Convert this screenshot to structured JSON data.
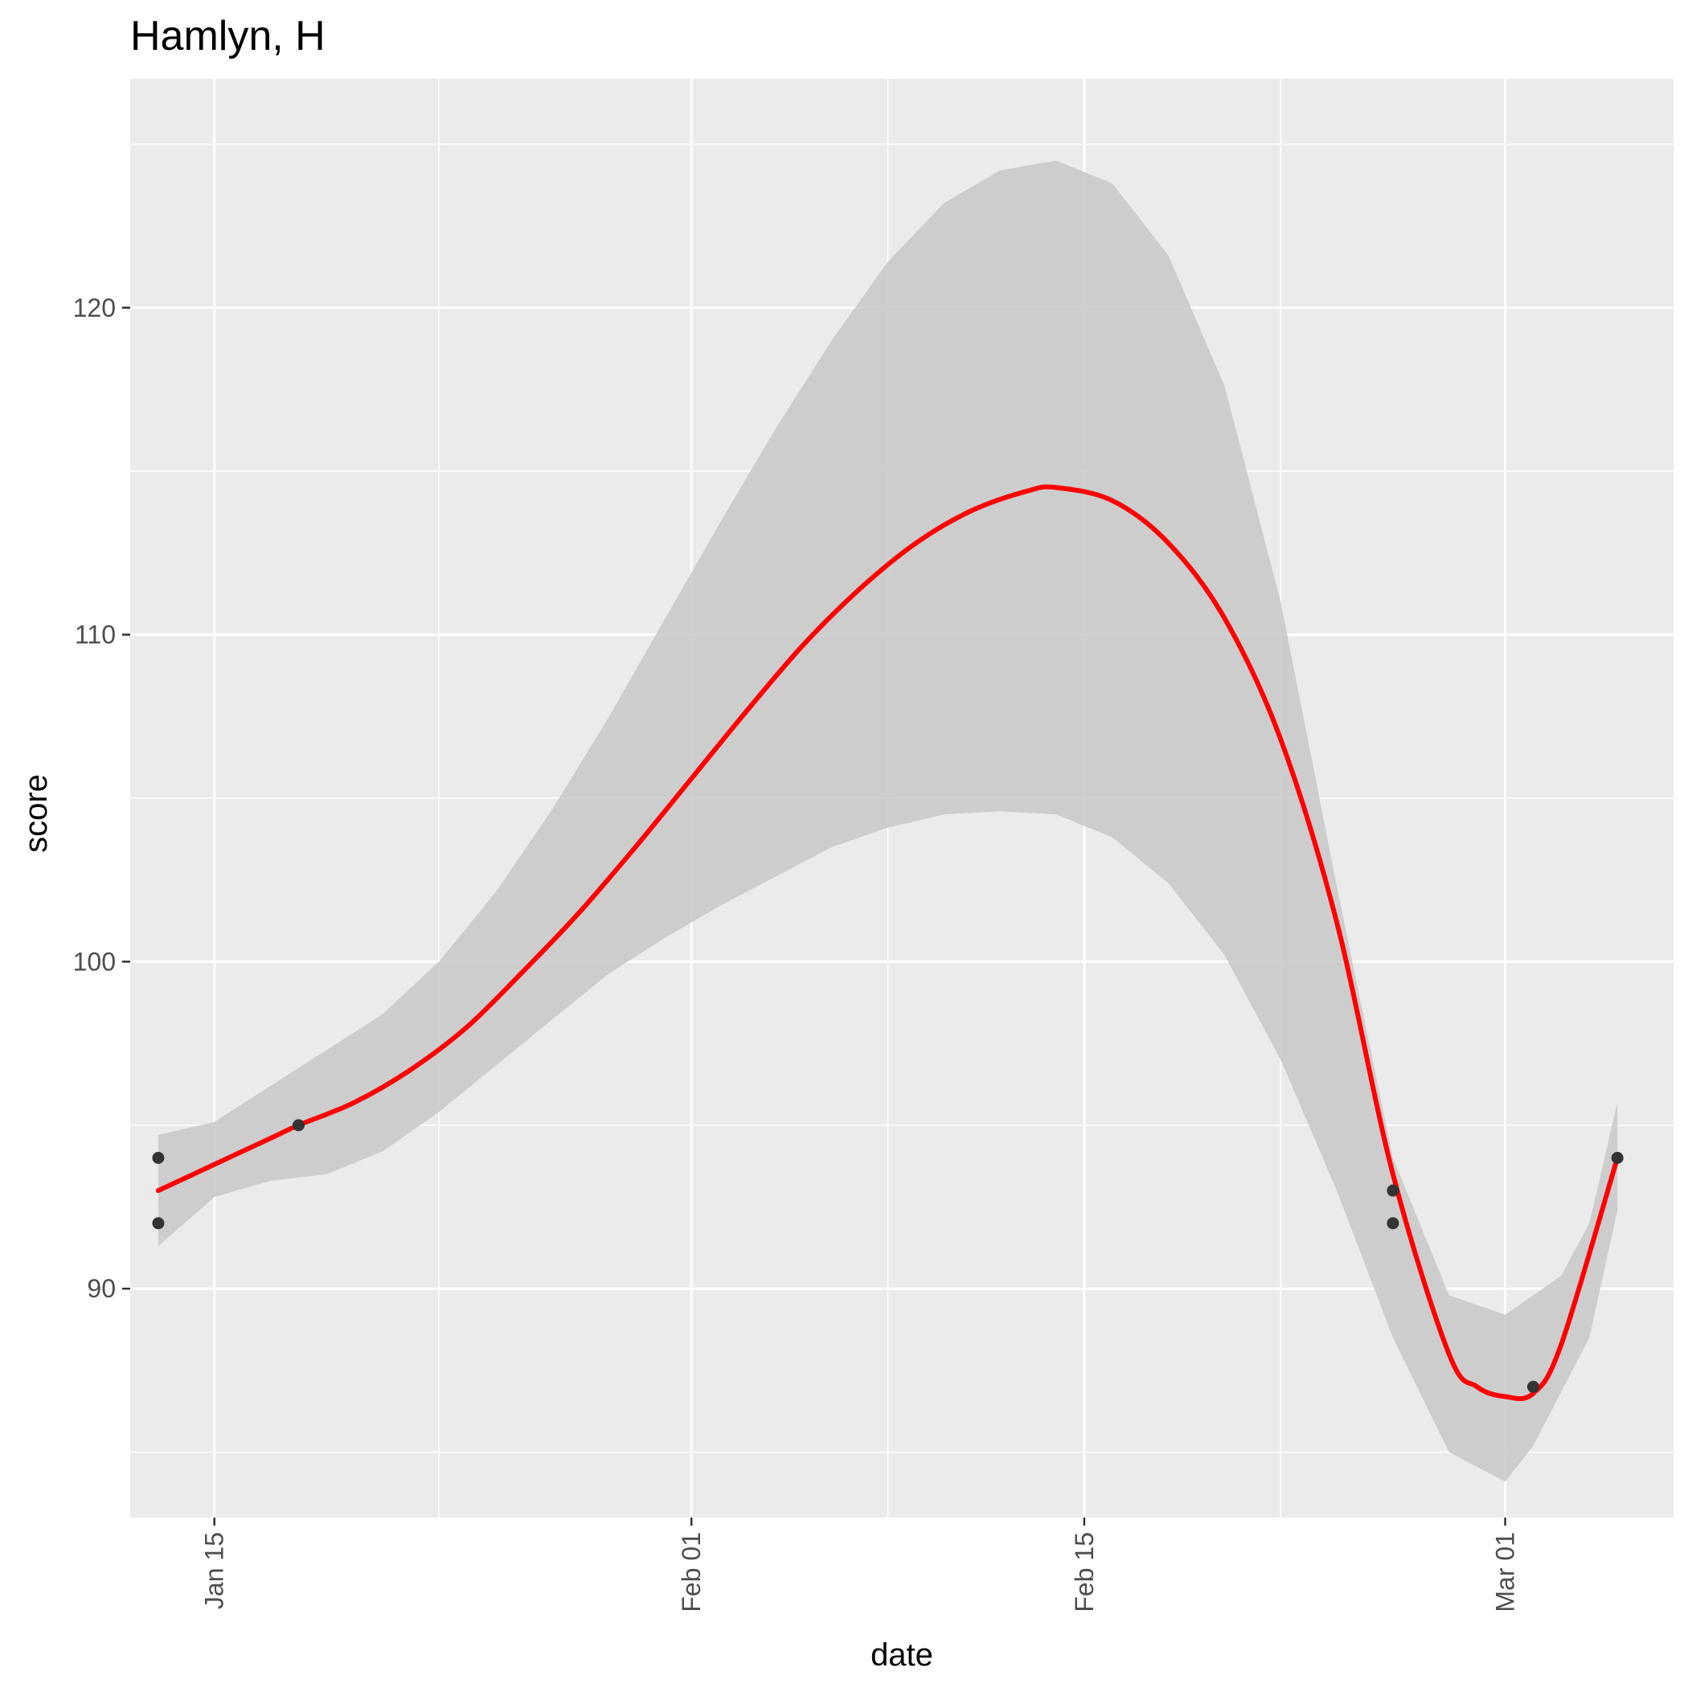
{
  "chart_data": {
    "type": "line",
    "title": "Hamlyn, H",
    "xlabel": "date",
    "ylabel": "score",
    "x_is_date": true,
    "x_range": [
      "2024-01-12",
      "2024-03-07"
    ],
    "ylim": [
      83.0,
      127.0
    ],
    "x_major_ticks": [
      {
        "date": "2024-01-15",
        "label": "Jan 15"
      },
      {
        "date": "2024-02-01",
        "label": "Feb 01"
      },
      {
        "date": "2024-02-15",
        "label": "Feb 15"
      },
      {
        "date": "2024-03-01",
        "label": "Mar 01"
      }
    ],
    "x_minor_gridlines": [
      "2024-01-23",
      "2024-02-08",
      "2024-02-22"
    ],
    "y_major_ticks": [
      90,
      100,
      110,
      120
    ],
    "y_minor_gridlines": [
      85,
      95,
      105,
      115,
      125
    ],
    "grid": true,
    "background": "#ebebeb",
    "series": [
      {
        "role": "points",
        "color": "#333333",
        "points": [
          {
            "x": "2024-01-13",
            "y": 94
          },
          {
            "x": "2024-01-13",
            "y": 92
          },
          {
            "x": "2024-01-18",
            "y": 95
          },
          {
            "x": "2024-02-26",
            "y": 93
          },
          {
            "x": "2024-02-26",
            "y": 92
          },
          {
            "x": "2024-03-02",
            "y": 87
          },
          {
            "x": "2024-03-05",
            "y": 94
          }
        ]
      },
      {
        "role": "smooth",
        "color": "#ff0000",
        "points": [
          {
            "x": "2024-01-13",
            "y": 93.0
          },
          {
            "x": "2024-01-15",
            "y": 93.8
          },
          {
            "x": "2024-01-17",
            "y": 94.6
          },
          {
            "x": "2024-01-18",
            "y": 95.0
          },
          {
            "x": "2024-01-20",
            "y": 95.7
          },
          {
            "x": "2024-01-22",
            "y": 96.7
          },
          {
            "x": "2024-01-24",
            "y": 98.0
          },
          {
            "x": "2024-01-26",
            "y": 99.7
          },
          {
            "x": "2024-01-28",
            "y": 101.5
          },
          {
            "x": "2024-01-30",
            "y": 103.5
          },
          {
            "x": "2024-02-01",
            "y": 105.6
          },
          {
            "x": "2024-02-03",
            "y": 107.7
          },
          {
            "x": "2024-02-05",
            "y": 109.7
          },
          {
            "x": "2024-02-07",
            "y": 111.4
          },
          {
            "x": "2024-02-09",
            "y": 112.8
          },
          {
            "x": "2024-02-11",
            "y": 113.8
          },
          {
            "x": "2024-02-13",
            "y": 114.4
          },
          {
            "x": "2024-02-14",
            "y": 114.5
          },
          {
            "x": "2024-02-16",
            "y": 114.1
          },
          {
            "x": "2024-02-18",
            "y": 112.8
          },
          {
            "x": "2024-02-20",
            "y": 110.5
          },
          {
            "x": "2024-02-22",
            "y": 106.8
          },
          {
            "x": "2024-02-24",
            "y": 101.2
          },
          {
            "x": "2024-02-26",
            "y": 93.5
          },
          {
            "x": "2024-02-28",
            "y": 88.0
          },
          {
            "x": "2024-02-29",
            "y": 87.0
          },
          {
            "x": "2024-03-01",
            "y": 86.7
          },
          {
            "x": "2024-03-02",
            "y": 86.8
          },
          {
            "x": "2024-03-03",
            "y": 88.3
          },
          {
            "x": "2024-03-05",
            "y": 94.0
          }
        ]
      },
      {
        "role": "confidence-band",
        "color": "#c8c8c8",
        "upper": [
          {
            "x": "2024-01-13",
            "y": 94.7
          },
          {
            "x": "2024-01-15",
            "y": 95.1
          },
          {
            "x": "2024-01-17",
            "y": 96.2
          },
          {
            "x": "2024-01-19",
            "y": 97.3
          },
          {
            "x": "2024-01-21",
            "y": 98.4
          },
          {
            "x": "2024-01-23",
            "y": 100.0
          },
          {
            "x": "2024-01-25",
            "y": 102.1
          },
          {
            "x": "2024-01-27",
            "y": 104.6
          },
          {
            "x": "2024-01-29",
            "y": 107.4
          },
          {
            "x": "2024-01-31",
            "y": 110.4
          },
          {
            "x": "2024-02-02",
            "y": 113.4
          },
          {
            "x": "2024-02-04",
            "y": 116.3
          },
          {
            "x": "2024-02-06",
            "y": 119.0
          },
          {
            "x": "2024-02-08",
            "y": 121.4
          },
          {
            "x": "2024-02-10",
            "y": 123.2
          },
          {
            "x": "2024-02-12",
            "y": 124.2
          },
          {
            "x": "2024-02-14",
            "y": 124.5
          },
          {
            "x": "2024-02-16",
            "y": 123.8
          },
          {
            "x": "2024-02-18",
            "y": 121.6
          },
          {
            "x": "2024-02-20",
            "y": 117.6
          },
          {
            "x": "2024-02-22",
            "y": 111.0
          },
          {
            "x": "2024-02-24",
            "y": 102.3
          },
          {
            "x": "2024-02-26",
            "y": 94.0
          },
          {
            "x": "2024-02-28",
            "y": 89.8
          },
          {
            "x": "2024-03-01",
            "y": 89.2
          },
          {
            "x": "2024-03-03",
            "y": 90.4
          },
          {
            "x": "2024-03-04",
            "y": 92.0
          },
          {
            "x": "2024-03-05",
            "y": 95.7
          }
        ],
        "lower": [
          {
            "x": "2024-01-13",
            "y": 91.3
          },
          {
            "x": "2024-01-15",
            "y": 92.8
          },
          {
            "x": "2024-01-17",
            "y": 93.3
          },
          {
            "x": "2024-01-19",
            "y": 93.5
          },
          {
            "x": "2024-01-21",
            "y": 94.2
          },
          {
            "x": "2024-01-23",
            "y": 95.4
          },
          {
            "x": "2024-01-25",
            "y": 96.8
          },
          {
            "x": "2024-01-27",
            "y": 98.2
          },
          {
            "x": "2024-01-29",
            "y": 99.6
          },
          {
            "x": "2024-01-31",
            "y": 100.7
          },
          {
            "x": "2024-02-02",
            "y": 101.7
          },
          {
            "x": "2024-02-04",
            "y": 102.6
          },
          {
            "x": "2024-02-06",
            "y": 103.5
          },
          {
            "x": "2024-02-08",
            "y": 104.1
          },
          {
            "x": "2024-02-10",
            "y": 104.5
          },
          {
            "x": "2024-02-12",
            "y": 104.6
          },
          {
            "x": "2024-02-14",
            "y": 104.5
          },
          {
            "x": "2024-02-16",
            "y": 103.8
          },
          {
            "x": "2024-02-18",
            "y": 102.4
          },
          {
            "x": "2024-02-20",
            "y": 100.2
          },
          {
            "x": "2024-02-22",
            "y": 97.0
          },
          {
            "x": "2024-02-24",
            "y": 93.0
          },
          {
            "x": "2024-02-26",
            "y": 88.5
          },
          {
            "x": "2024-02-28",
            "y": 85.0
          },
          {
            "x": "2024-03-01",
            "y": 84.1
          },
          {
            "x": "2024-03-02",
            "y": 85.2
          },
          {
            "x": "2024-03-04",
            "y": 88.5
          },
          {
            "x": "2024-03-05",
            "y": 92.4
          }
        ]
      }
    ]
  }
}
